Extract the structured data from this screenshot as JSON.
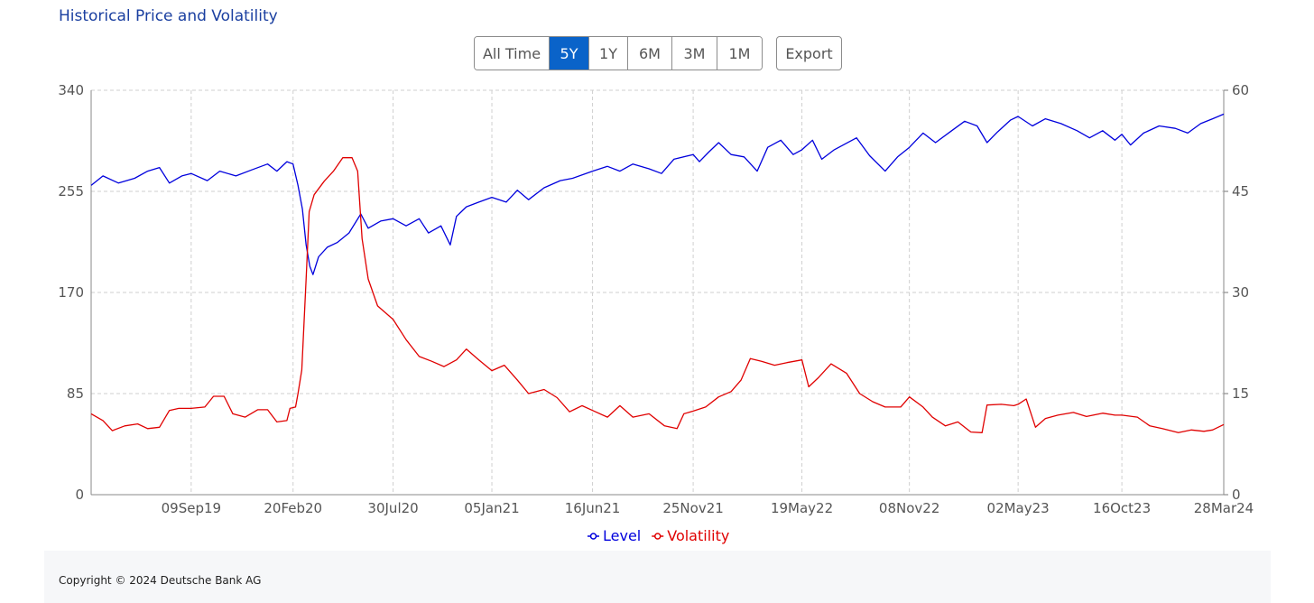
{
  "title": "Historical Price and Volatility",
  "range_buttons": [
    {
      "label": "All Time",
      "active": false
    },
    {
      "label": "5Y",
      "active": true
    },
    {
      "label": "1Y",
      "active": false
    },
    {
      "label": "6M",
      "active": false
    },
    {
      "label": "3M",
      "active": false
    },
    {
      "label": "1M",
      "active": false
    }
  ],
  "export_label": "Export",
  "footer": {
    "copyright": "Copyright © 2024 Deutsche Bank AG"
  },
  "colors": {
    "level": "#0000dd",
    "volatility": "#e00000",
    "active_button": "#0a63c9",
    "title": "#1a3fa0"
  },
  "chart_data": {
    "type": "line",
    "title": "",
    "x_range": [
      "2019-04-01",
      "2024-03-28"
    ],
    "x_ticks": [
      {
        "date": "2019-09-09",
        "label": "09Sep19"
      },
      {
        "date": "2020-02-20",
        "label": "20Feb20"
      },
      {
        "date": "2020-07-30",
        "label": "30Jul20"
      },
      {
        "date": "2021-01-05",
        "label": "05Jan21"
      },
      {
        "date": "2021-06-16",
        "label": "16Jun21"
      },
      {
        "date": "2021-11-25",
        "label": "25Nov21"
      },
      {
        "date": "2022-05-19",
        "label": "19May22"
      },
      {
        "date": "2022-11-08",
        "label": "08Nov22"
      },
      {
        "date": "2023-05-02",
        "label": "02May23"
      },
      {
        "date": "2023-10-16",
        "label": "16Oct23"
      },
      {
        "date": "2024-03-28",
        "label": "28Mar24"
      }
    ],
    "y_left": {
      "min": 0,
      "max": 340,
      "ticks": [
        "0",
        "85",
        "170",
        "255",
        "340"
      ]
    },
    "y_right": {
      "min": 0,
      "max": 60,
      "ticks": [
        "0",
        "15",
        "30",
        "45",
        "60"
      ]
    },
    "grid": true,
    "legend_position": "bottom-center",
    "series": [
      {
        "name": "Level",
        "axis": "left",
        "points": [
          [
            "2019-04-01",
            260
          ],
          [
            "2019-04-20",
            268
          ],
          [
            "2019-05-15",
            262
          ],
          [
            "2019-06-10",
            266
          ],
          [
            "2019-07-01",
            272
          ],
          [
            "2019-07-20",
            275
          ],
          [
            "2019-08-05",
            262
          ],
          [
            "2019-08-25",
            268
          ],
          [
            "2019-09-09",
            270
          ],
          [
            "2019-10-05",
            264
          ],
          [
            "2019-10-25",
            272
          ],
          [
            "2019-11-20",
            268
          ],
          [
            "2019-12-15",
            273
          ],
          [
            "2020-01-10",
            278
          ],
          [
            "2020-01-25",
            272
          ],
          [
            "2020-02-10",
            280
          ],
          [
            "2020-02-20",
            278
          ],
          [
            "2020-02-28",
            260
          ],
          [
            "2020-03-06",
            240
          ],
          [
            "2020-03-12",
            210
          ],
          [
            "2020-03-18",
            192
          ],
          [
            "2020-03-23",
            185
          ],
          [
            "2020-04-01",
            200
          ],
          [
            "2020-04-15",
            208
          ],
          [
            "2020-05-01",
            212
          ],
          [
            "2020-05-20",
            220
          ],
          [
            "2020-06-08",
            236
          ],
          [
            "2020-06-20",
            224
          ],
          [
            "2020-07-10",
            230
          ],
          [
            "2020-07-30",
            232
          ],
          [
            "2020-08-20",
            226
          ],
          [
            "2020-09-10",
            232
          ],
          [
            "2020-09-25",
            220
          ],
          [
            "2020-10-15",
            226
          ],
          [
            "2020-10-30",
            210
          ],
          [
            "2020-11-09",
            234
          ],
          [
            "2020-11-25",
            242
          ],
          [
            "2020-12-15",
            246
          ],
          [
            "2021-01-05",
            250
          ],
          [
            "2021-01-28",
            246
          ],
          [
            "2021-02-15",
            256
          ],
          [
            "2021-03-05",
            248
          ],
          [
            "2021-03-30",
            258
          ],
          [
            "2021-04-25",
            264
          ],
          [
            "2021-05-15",
            266
          ],
          [
            "2021-06-16",
            272
          ],
          [
            "2021-07-10",
            276
          ],
          [
            "2021-07-30",
            272
          ],
          [
            "2021-08-20",
            278
          ],
          [
            "2021-09-15",
            274
          ],
          [
            "2021-10-05",
            270
          ],
          [
            "2021-10-25",
            282
          ],
          [
            "2021-11-25",
            286
          ],
          [
            "2021-12-05",
            280
          ],
          [
            "2021-12-20",
            288
          ],
          [
            "2022-01-05",
            296
          ],
          [
            "2022-01-25",
            286
          ],
          [
            "2022-02-15",
            284
          ],
          [
            "2022-03-08",
            272
          ],
          [
            "2022-03-25",
            292
          ],
          [
            "2022-04-15",
            298
          ],
          [
            "2022-05-05",
            286
          ],
          [
            "2022-05-19",
            290
          ],
          [
            "2022-06-05",
            298
          ],
          [
            "2022-06-20",
            282
          ],
          [
            "2022-07-10",
            290
          ],
          [
            "2022-08-15",
            300
          ],
          [
            "2022-09-05",
            285
          ],
          [
            "2022-09-30",
            272
          ],
          [
            "2022-10-20",
            284
          ],
          [
            "2022-11-08",
            292
          ],
          [
            "2022-11-30",
            304
          ],
          [
            "2022-12-20",
            296
          ],
          [
            "2023-01-15",
            306
          ],
          [
            "2023-02-05",
            314
          ],
          [
            "2023-02-25",
            310
          ],
          [
            "2023-03-13",
            296
          ],
          [
            "2023-03-30",
            305
          ],
          [
            "2023-04-20",
            315
          ],
          [
            "2023-05-02",
            318
          ],
          [
            "2023-05-25",
            310
          ],
          [
            "2023-06-15",
            316
          ],
          [
            "2023-07-10",
            312
          ],
          [
            "2023-08-05",
            306
          ],
          [
            "2023-08-25",
            300
          ],
          [
            "2023-09-15",
            306
          ],
          [
            "2023-10-05",
            298
          ],
          [
            "2023-10-16",
            303
          ],
          [
            "2023-10-30",
            294
          ],
          [
            "2023-11-20",
            304
          ],
          [
            "2023-12-15",
            310
          ],
          [
            "2024-01-10",
            308
          ],
          [
            "2024-01-30",
            304
          ],
          [
            "2024-02-20",
            312
          ],
          [
            "2024-03-10",
            316
          ],
          [
            "2024-03-28",
            320
          ]
        ]
      },
      {
        "name": "Volatility",
        "axis": "right",
        "points": [
          [
            "2019-04-01",
            12.0
          ],
          [
            "2019-04-20",
            11.0
          ],
          [
            "2019-05-05",
            9.5
          ],
          [
            "2019-05-25",
            10.2
          ],
          [
            "2019-06-15",
            10.5
          ],
          [
            "2019-07-01",
            9.8
          ],
          [
            "2019-07-20",
            10.0
          ],
          [
            "2019-08-05",
            12.5
          ],
          [
            "2019-08-20",
            12.8
          ],
          [
            "2019-09-09",
            12.8
          ],
          [
            "2019-10-01",
            13.0
          ],
          [
            "2019-10-15",
            14.6
          ],
          [
            "2019-11-01",
            14.6
          ],
          [
            "2019-11-15",
            12.0
          ],
          [
            "2019-12-05",
            11.5
          ],
          [
            "2019-12-25",
            12.6
          ],
          [
            "2020-01-10",
            12.6
          ],
          [
            "2020-01-25",
            10.8
          ],
          [
            "2020-02-10",
            11.0
          ],
          [
            "2020-02-15",
            12.8
          ],
          [
            "2020-02-24",
            13.0
          ],
          [
            "2020-02-28",
            15.0
          ],
          [
            "2020-03-05",
            18.5
          ],
          [
            "2020-03-12",
            32.0
          ],
          [
            "2020-03-17",
            42.0
          ],
          [
            "2020-03-25",
            44.5
          ],
          [
            "2020-04-10",
            46.5
          ],
          [
            "2020-04-25",
            48.0
          ],
          [
            "2020-05-10",
            50.0
          ],
          [
            "2020-05-25",
            50.0
          ],
          [
            "2020-06-03",
            48.0
          ],
          [
            "2020-06-10",
            38.0
          ],
          [
            "2020-06-20",
            32.0
          ],
          [
            "2020-07-05",
            28.0
          ],
          [
            "2020-07-30",
            26.0
          ],
          [
            "2020-08-20",
            23.0
          ],
          [
            "2020-09-10",
            20.5
          ],
          [
            "2020-09-30",
            19.8
          ],
          [
            "2020-10-20",
            19.0
          ],
          [
            "2020-11-09",
            20.0
          ],
          [
            "2020-11-25",
            21.6
          ],
          [
            "2020-12-15",
            20.0
          ],
          [
            "2021-01-05",
            18.4
          ],
          [
            "2021-01-25",
            19.2
          ],
          [
            "2021-02-15",
            17.0
          ],
          [
            "2021-03-05",
            15.0
          ],
          [
            "2021-03-30",
            15.6
          ],
          [
            "2021-04-20",
            14.4
          ],
          [
            "2021-05-10",
            12.3
          ],
          [
            "2021-05-30",
            13.2
          ],
          [
            "2021-06-16",
            12.5
          ],
          [
            "2021-07-10",
            11.5
          ],
          [
            "2021-07-30",
            13.2
          ],
          [
            "2021-08-20",
            11.5
          ],
          [
            "2021-09-15",
            12.0
          ],
          [
            "2021-10-10",
            10.2
          ],
          [
            "2021-10-30",
            9.8
          ],
          [
            "2021-11-10",
            12.0
          ],
          [
            "2021-11-25",
            12.4
          ],
          [
            "2021-12-15",
            13.0
          ],
          [
            "2022-01-05",
            14.5
          ],
          [
            "2022-01-25",
            15.3
          ],
          [
            "2022-02-10",
            17.0
          ],
          [
            "2022-02-25",
            20.2
          ],
          [
            "2022-03-15",
            19.8
          ],
          [
            "2022-04-05",
            19.2
          ],
          [
            "2022-04-25",
            19.6
          ],
          [
            "2022-05-19",
            20.0
          ],
          [
            "2022-05-30",
            16.0
          ],
          [
            "2022-06-15",
            17.4
          ],
          [
            "2022-07-05",
            19.4
          ],
          [
            "2022-07-30",
            18.0
          ],
          [
            "2022-08-20",
            15.0
          ],
          [
            "2022-09-10",
            13.8
          ],
          [
            "2022-09-30",
            13.0
          ],
          [
            "2022-10-25",
            13.0
          ],
          [
            "2022-11-08",
            14.5
          ],
          [
            "2022-11-30",
            13.0
          ],
          [
            "2022-12-15",
            11.5
          ],
          [
            "2023-01-05",
            10.2
          ],
          [
            "2023-01-25",
            10.8
          ],
          [
            "2023-02-15",
            9.3
          ],
          [
            "2023-03-05",
            9.2
          ],
          [
            "2023-03-13",
            13.3
          ],
          [
            "2023-04-05",
            13.4
          ],
          [
            "2023-04-25",
            13.2
          ],
          [
            "2023-05-02",
            13.4
          ],
          [
            "2023-05-15",
            14.2
          ],
          [
            "2023-05-30",
            10.0
          ],
          [
            "2023-06-15",
            11.3
          ],
          [
            "2023-07-05",
            11.8
          ],
          [
            "2023-07-30",
            12.2
          ],
          [
            "2023-08-20",
            11.6
          ],
          [
            "2023-09-15",
            12.1
          ],
          [
            "2023-10-05",
            11.8
          ],
          [
            "2023-10-16",
            11.8
          ],
          [
            "2023-11-10",
            11.5
          ],
          [
            "2023-11-30",
            10.2
          ],
          [
            "2023-12-20",
            9.8
          ],
          [
            "2024-01-15",
            9.2
          ],
          [
            "2024-02-05",
            9.6
          ],
          [
            "2024-02-25",
            9.4
          ],
          [
            "2024-03-10",
            9.6
          ],
          [
            "2024-03-28",
            10.4
          ]
        ]
      }
    ]
  }
}
